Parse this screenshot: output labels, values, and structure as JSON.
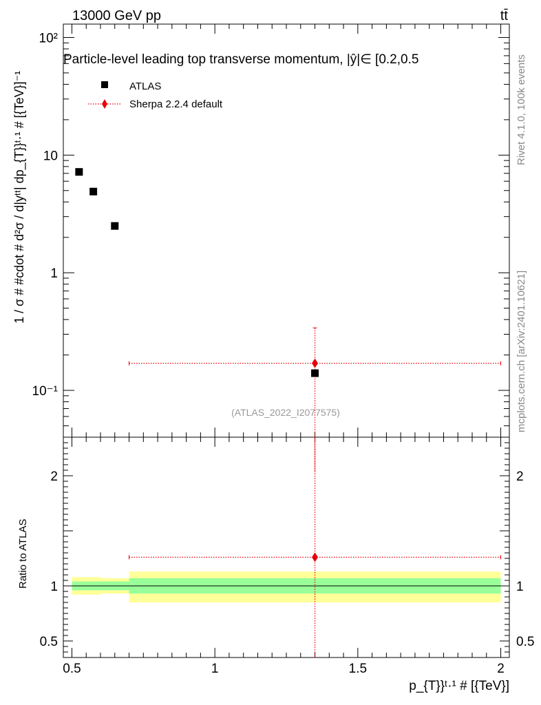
{
  "header": {
    "energy_label": "13000 GeV pp",
    "process_label": "tt̄"
  },
  "side_text": {
    "rivet": "Rivet 4.1.0,  100k events",
    "mcplots": "mcplots.cern.ch [arXiv:2401.10621]"
  },
  "chart_data": [
    {
      "type": "scatter",
      "panel": "main",
      "title": "Particle-level leading top transverse momentum, |y^tt̄| ∈ [0.2,0.5]",
      "title_display": "Particle-level leading top transverse momentum, |ŷ|∈ [0.2,0.5",
      "ylabel": "1 / σ # #cdot # d²σ / d|y^tt̄| dp_{T}^{t,1} # [{TeV}⁻¹]",
      "ylabel_display": "1 / σ # #cdot # d²σ / d|yᵗᵗ| dp_{T}}ᵗ·¹ # [{TeV}]⁻¹",
      "yscale": "log",
      "ylim": [
        0.04,
        130
      ],
      "xlim": [
        0.47,
        2.03
      ],
      "y_ticks": [
        {
          "value": 100,
          "label": "10²"
        },
        {
          "value": 10,
          "label": "10"
        },
        {
          "value": 1,
          "label": "1"
        },
        {
          "value": 0.1,
          "label": "10⁻¹"
        }
      ],
      "watermark": "(ATLAS_2022_I2077575)",
      "legend": [
        {
          "name": "ATLAS",
          "marker": "square",
          "color": "#000000"
        },
        {
          "name": "Sherpa 2.2.4 default",
          "marker": "diamond",
          "color": "#e8000b"
        }
      ],
      "series": [
        {
          "name": "ATLAS",
          "color": "#000000",
          "points": [
            {
              "x": 0.525,
              "y": 7.2
            },
            {
              "x": 0.575,
              "y": 4.9
            },
            {
              "x": 0.65,
              "y": 2.5
            },
            {
              "x": 1.35,
              "y": 0.14
            }
          ]
        },
        {
          "name": "Sherpa 2.2.4 default",
          "color": "#e8000b",
          "points": [
            {
              "x": 1.35,
              "y": 0.17,
              "xerr": [
                0.7,
                2.0
              ],
              "yerr": [
                0.02,
                0.34
              ]
            }
          ]
        }
      ]
    },
    {
      "type": "ratio",
      "panel": "ratio",
      "ylabel": "Ratio to ATLAS",
      "xlabel": "p_{T}^{t,1} # [{TeV}]",
      "xlabel_display": "p_{T}}ᵗ·¹ # [{TeV}]",
      "ylim": [
        0.35,
        2.35
      ],
      "xlim": [
        0.47,
        2.03
      ],
      "y_ticks": [
        {
          "value": 2,
          "label": "2"
        },
        {
          "value": 1,
          "label": "1"
        },
        {
          "value": 0.5,
          "label": "0.5"
        }
      ],
      "x_ticks": [
        {
          "value": 0.5,
          "label": "0.5"
        },
        {
          "value": 1,
          "label": "1"
        },
        {
          "value": 1.5,
          "label": "1.5"
        },
        {
          "value": 2,
          "label": "2"
        }
      ],
      "bands": [
        {
          "x0": 0.5,
          "x1": 0.6,
          "stat_lo": 0.96,
          "stat_hi": 1.04,
          "tot_lo": 0.92,
          "tot_hi": 1.08
        },
        {
          "x0": 0.6,
          "x1": 0.7,
          "stat_lo": 0.96,
          "stat_hi": 1.04,
          "tot_lo": 0.93,
          "tot_hi": 1.07
        },
        {
          "x0": 0.7,
          "x1": 2.0,
          "stat_lo": 0.93,
          "stat_hi": 1.07,
          "tot_lo": 0.85,
          "tot_hi": 1.13
        }
      ],
      "band_colors": {
        "stat": "#99ff99",
        "total": "#ffff99"
      },
      "series": [
        {
          "name": "Sherpa 2.2.4 default",
          "color": "#e8000b",
          "x": 1.35,
          "y": 1.26,
          "xerr": [
            0.7,
            2.0
          ],
          "yerr": [
            0.35,
            2.35
          ]
        }
      ]
    }
  ]
}
